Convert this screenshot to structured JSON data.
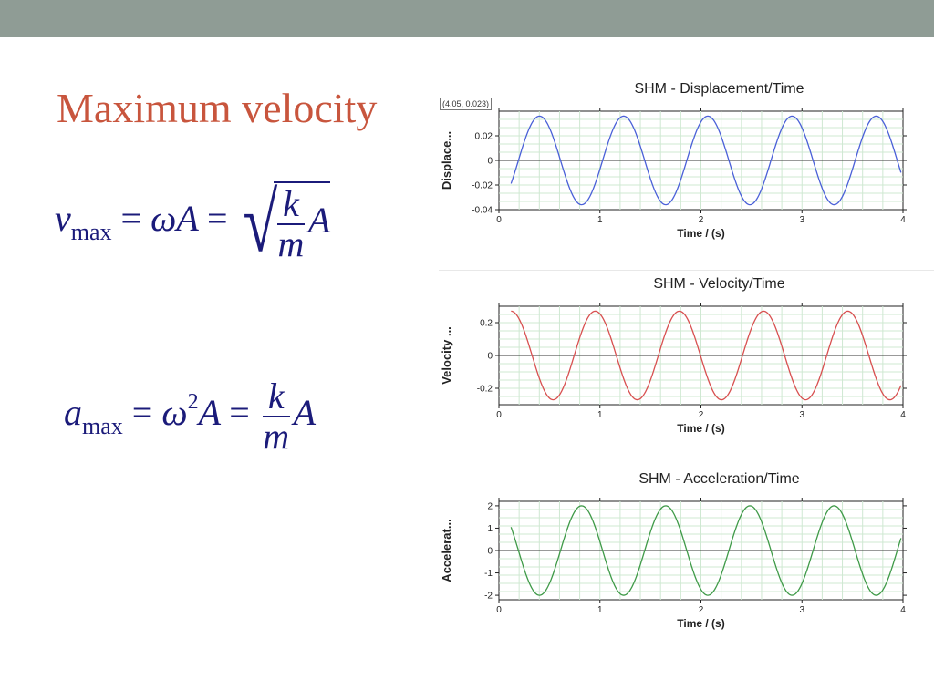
{
  "slide": {
    "title": "Maximum velocity",
    "equations": {
      "vmax": {
        "v": "v",
        "sub": "max",
        "eq1": "=",
        "omegaA": "ωA",
        "eq2": "=",
        "k": "k",
        "m": "m",
        "A": "A"
      },
      "amax": {
        "a": "a",
        "sub": "max",
        "eq1": "=",
        "omega": "ω",
        "sup": "2",
        "A1": "A",
        "eq2": "=",
        "k": "k",
        "m": "m",
        "A2": "A"
      }
    }
  },
  "cursor_readout": "(4.05, 0.023)",
  "chart_data": [
    {
      "type": "line",
      "title": "SHM - Displacement/Time",
      "xlabel": "Time / (s)",
      "ylabel": "Displace...",
      "xlim": [
        0,
        4
      ],
      "ylim": [
        -0.04,
        0.04
      ],
      "xticks": [
        0,
        1,
        2,
        3,
        4
      ],
      "yticks": [
        0.02,
        0,
        -0.02,
        -0.04
      ],
      "ytick_labels": [
        "0.02",
        "0",
        "-0.02",
        "-0.04"
      ],
      "grid": true,
      "color": "#4a60d8",
      "series": [
        {
          "function": "0.036*sin(2*pi*1.2*(t-0.193))",
          "t_start": 0.12,
          "t_end": 3.98
        }
      ]
    },
    {
      "type": "line",
      "title": "SHM - Velocity/Time",
      "xlabel": "Time / (s)",
      "ylabel": "Velocity ...",
      "xlim": [
        0,
        4
      ],
      "ylim": [
        -0.3,
        0.3
      ],
      "xticks": [
        0,
        1,
        2,
        3,
        4
      ],
      "yticks": [
        0.2,
        0,
        -0.2
      ],
      "ytick_labels": [
        "0.2",
        "0",
        "-0.2"
      ],
      "grid": true,
      "color": "#d85050",
      "series": [
        {
          "function": "0.27*cos(2*pi*1.2*(t-0.12))",
          "t_start": 0.12,
          "t_end": 3.98
        }
      ]
    },
    {
      "type": "line",
      "title": "SHM - Acceleration/Time",
      "xlabel": "Time / (s)",
      "ylabel": "Accelerat...",
      "xlim": [
        0,
        4
      ],
      "ylim": [
        -2.2,
        2.2
      ],
      "xticks": [
        0,
        1,
        2,
        3,
        4
      ],
      "yticks": [
        2,
        1,
        0,
        -1,
        -2
      ],
      "ytick_labels": [
        "2",
        "1",
        "0",
        "-1",
        "-2"
      ],
      "grid": true,
      "color": "#3f9a48",
      "series": [
        {
          "function": "-2.0*sin(2*pi*1.2*(t-0.193))",
          "t_start": 0.12,
          "t_end": 3.98
        }
      ]
    }
  ]
}
